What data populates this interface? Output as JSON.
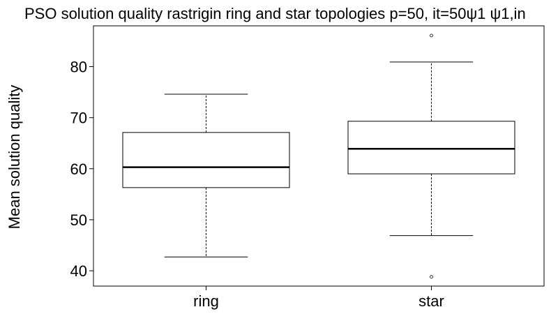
{
  "chart_data": {
    "type": "boxplot",
    "title": "PSO solution quality rastrigin ring and star topologies p=50, it=50ψ1 ψ1,in",
    "xlabel": "",
    "ylabel": "Mean solution quality",
    "ylim": [
      37,
      88
    ],
    "yticks": [
      40,
      50,
      60,
      70,
      80
    ],
    "grid": false,
    "categories": [
      "ring",
      "star"
    ],
    "boxes": [
      {
        "category": "ring",
        "whisker_low": 42.7,
        "q1": 56.3,
        "median": 60.3,
        "q3": 67.1,
        "whisker_high": 74.6,
        "outliers": []
      },
      {
        "category": "star",
        "whisker_low": 46.9,
        "q1": 59.0,
        "median": 63.9,
        "q3": 69.3,
        "whisker_high": 80.9,
        "outliers": [
          86.1,
          38.8
        ]
      }
    ]
  }
}
